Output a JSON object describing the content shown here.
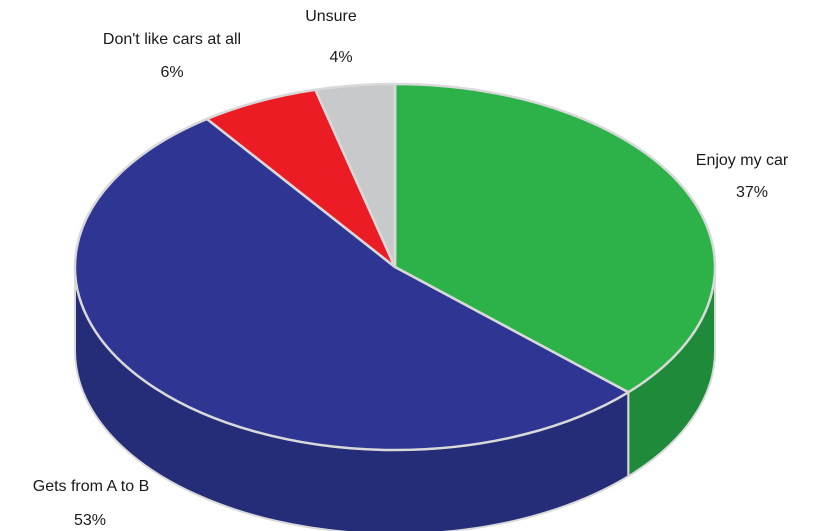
{
  "chart_data": {
    "type": "pie",
    "title": "",
    "style": "3d",
    "legend": "none",
    "slices": [
      {
        "label": "Enjoy my car",
        "value": 37,
        "value_label": "37%",
        "color": "#2db24a",
        "side_color": "#1f8a3a"
      },
      {
        "label": "Gets from A to B",
        "value": 53,
        "value_label": "53%",
        "color": "#2e3593",
        "side_color": "#262d78"
      },
      {
        "label": "Don't like cars at all",
        "value": 6,
        "value_label": "6%",
        "color": "#ec1c24",
        "side_color": "#b5151b"
      },
      {
        "label": "Unsure",
        "value": 4,
        "value_label": "4%",
        "color": "#c8c9cb",
        "side_color": "#a3a4a6"
      }
    ]
  }
}
